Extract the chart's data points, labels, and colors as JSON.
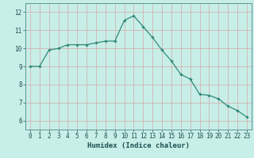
{
  "x": [
    0,
    1,
    2,
    3,
    4,
    5,
    6,
    7,
    8,
    9,
    10,
    11,
    12,
    13,
    14,
    15,
    16,
    17,
    18,
    19,
    20,
    21,
    22,
    23
  ],
  "y": [
    9.0,
    9.0,
    9.9,
    10.0,
    10.2,
    10.2,
    10.2,
    10.3,
    10.4,
    10.4,
    11.55,
    11.8,
    11.2,
    10.6,
    9.9,
    9.3,
    8.55,
    8.3,
    7.45,
    7.4,
    7.2,
    6.8,
    6.55,
    6.2
  ],
  "line_color": "#2e8b7a",
  "marker": "D",
  "marker_size": 1.8,
  "bg_color": "#c8eee8",
  "grid_color": "#d4a8a8",
  "xlabel": "Humidex (Indice chaleur)",
  "ylim": [
    5.5,
    12.5
  ],
  "xlim": [
    -0.5,
    23.5
  ],
  "yticks": [
    6,
    7,
    8,
    9,
    10,
    11,
    12
  ],
  "xticks": [
    0,
    1,
    2,
    3,
    4,
    5,
    6,
    7,
    8,
    9,
    10,
    11,
    12,
    13,
    14,
    15,
    16,
    17,
    18,
    19,
    20,
    21,
    22,
    23
  ],
  "font_color": "#1a5050",
  "label_fontsize": 6.5,
  "tick_fontsize": 5.5,
  "spine_color": "#5a9a90"
}
